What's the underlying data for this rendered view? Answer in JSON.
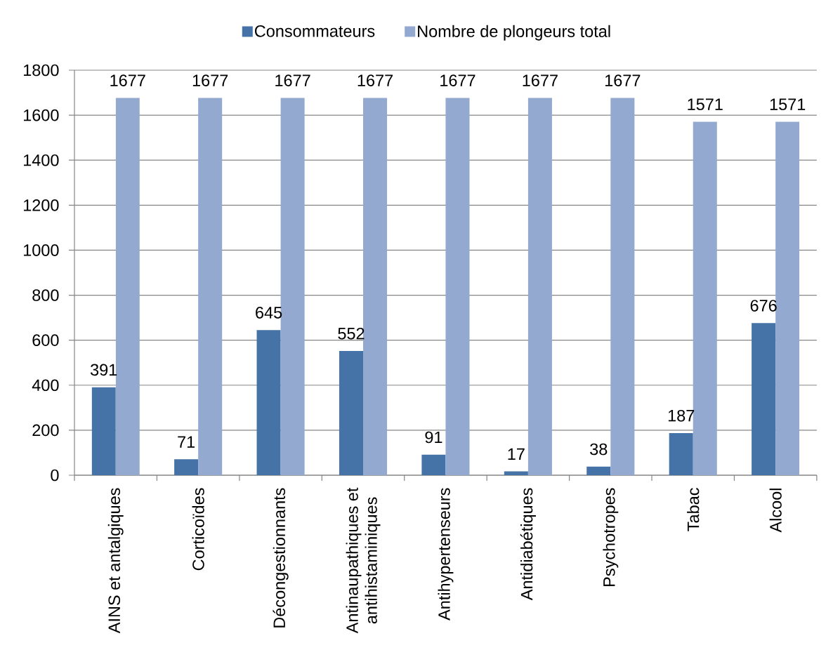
{
  "chart_data": {
    "type": "bar",
    "categories": [
      "AINS et antalgiques",
      "Corticoïdes",
      "Décongestionnants",
      "Antinaupathiques et antihistaminiques",
      "Antihypertenseurs",
      "Antidiabétiques",
      "Psychotropes",
      "Tabac",
      "Alcool"
    ],
    "series": [
      {
        "name": "Consommateurs",
        "color": "#4572a7",
        "values": [
          391,
          71,
          645,
          552,
          91,
          17,
          38,
          187,
          676
        ]
      },
      {
        "name": "Nombre de plongeurs total",
        "color": "#93a9cf",
        "values": [
          1677,
          1677,
          1677,
          1677,
          1677,
          1677,
          1677,
          1571,
          1571
        ]
      }
    ],
    "ylim": [
      0,
      1800
    ],
    "yticks": [
      0,
      200,
      400,
      600,
      800,
      1000,
      1200,
      1400,
      1600,
      1800
    ],
    "grid": "y",
    "legend": "top",
    "data_labels": true
  }
}
